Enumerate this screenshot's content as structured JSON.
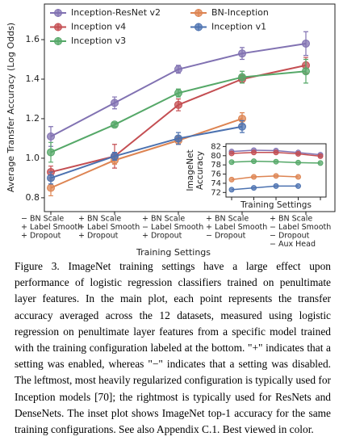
{
  "chart_data": [
    {
      "type": "line",
      "ylabel": "Average Transfer Accuracy (Log Odds)",
      "xlabel": "Training Settings",
      "categories": [
        [
          "− BN Scale",
          "+ Label Smooth",
          "+ Dropout"
        ],
        [
          "+ BN Scale",
          "+ Label Smooth",
          "+ Dropout"
        ],
        [
          "+ BN Scale",
          "− Label Smooth",
          "+ Dropout"
        ],
        [
          "+ BN Scale",
          "+ Label Smooth",
          "− Dropout"
        ],
        [
          "+ BN Scale",
          "− Label Smooth",
          "− Dropout",
          "− Aux Head"
        ]
      ],
      "ylim": [
        0.73,
        1.78
      ],
      "yticks": [
        0.8,
        {
          "value": 1,
          "label": "1.0"
        },
        1.2,
        1.4,
        1.6
      ],
      "legend_loc": "upper left",
      "legend_columns": 2,
      "series": [
        {
          "name": "Inception-ResNet v2",
          "color": "#8172b2",
          "values": [
            1.11,
            1.28,
            1.45,
            1.53,
            1.58
          ],
          "errors": [
            0.05,
            0.03,
            0.02,
            0.03,
            0.06
          ]
        },
        {
          "name": "Inception v4",
          "color": "#c44e52",
          "values": [
            0.93,
            1.01,
            1.27,
            1.4,
            1.47
          ],
          "errors": [
            0.03,
            0.06,
            0.03,
            0.02,
            0.04
          ]
        },
        {
          "name": "Inception v3",
          "color": "#55a868",
          "values": [
            1.03,
            1.17,
            1.33,
            1.41,
            1.44
          ],
          "errors": [
            0.05,
            0.01,
            0.02,
            0.03,
            0.06
          ]
        },
        {
          "name": "BN-Inception",
          "color": "#dd8452",
          "values": [
            0.85,
            0.99,
            1.09,
            1.2,
            null
          ],
          "errors": [
            0.04,
            0.02,
            0.02,
            0.03,
            null
          ]
        },
        {
          "name": "Inception v1",
          "color": "#4c72b0",
          "values": [
            0.9,
            1.01,
            1.1,
            1.16,
            null
          ],
          "errors": [
            0.03,
            0.02,
            0.03,
            0.03,
            null
          ]
        }
      ]
    },
    {
      "type": "line",
      "ylabel": [
        "ImageNet",
        "Accuracy"
      ],
      "xlabel": "Training Settings",
      "ylim": [
        71,
        82.6
      ],
      "yticks": [
        72,
        74,
        76,
        78,
        80,
        82
      ],
      "series": [
        {
          "color": "#8172b2",
          "values": [
            80.9,
            81.2,
            81.1,
            80.7,
            80.2
          ]
        },
        {
          "color": "#c44e52",
          "values": [
            80.5,
            80.7,
            80.7,
            80.4,
            79.9
          ]
        },
        {
          "color": "#55a868",
          "values": [
            78.6,
            78.8,
            78.7,
            78.5,
            78.4
          ]
        },
        {
          "color": "#dd8452",
          "values": [
            74.8,
            75.4,
            75.6,
            75.4,
            null
          ]
        },
        {
          "color": "#4c72b0",
          "values": [
            72.6,
            73.0,
            73.4,
            73.4,
            null
          ]
        }
      ]
    }
  ],
  "caption": "Figure 3. ImageNet training settings have a large effect upon performance of logistic regression classifiers trained on penultimate layer features. In the main plot, each point represents the transfer accuracy averaged across the 12 datasets, measured using logistic regression on penultimate layer features from a specific model trained with the training configuration labeled at the bottom. \"+\" indicates that a setting was enabled, whereas \"−\" indicates that a setting was disabled. The leftmost, most heavily regularized configuration is typically used for Inception models [70]; the rightmost is typically used for ResNets and DenseNets. The inset plot shows ImageNet top-1 accuracy for the same training configurations. See also Appendix C.1. Best viewed in color."
}
